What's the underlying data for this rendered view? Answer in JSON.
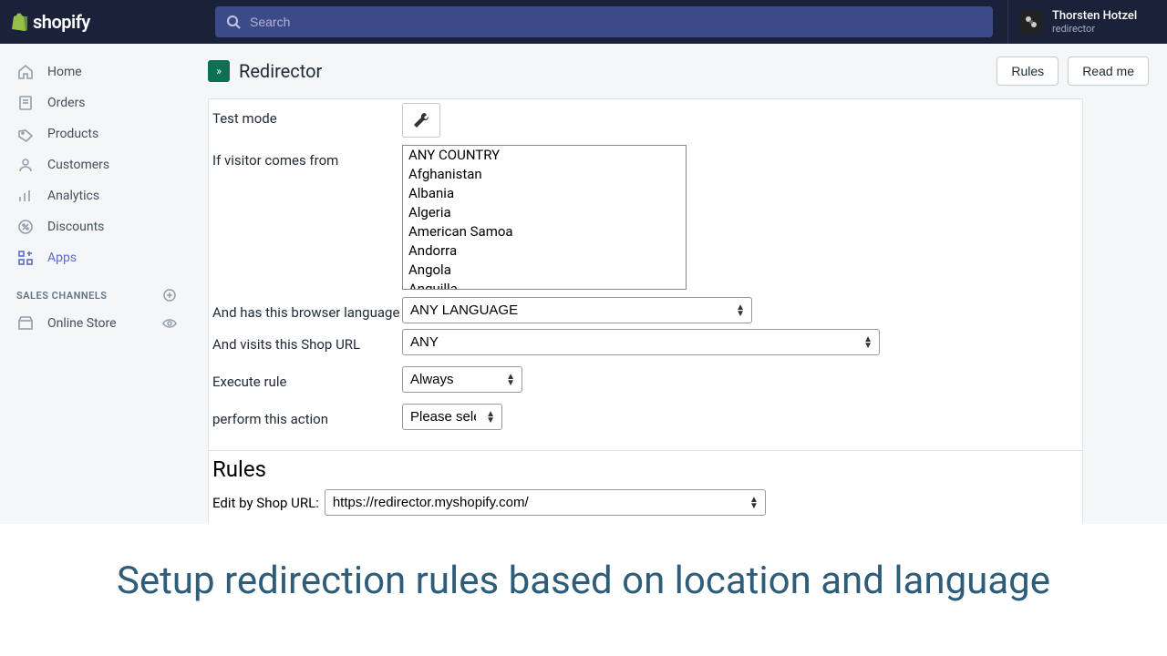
{
  "brand": "shopify",
  "search": {
    "placeholder": "Search"
  },
  "user": {
    "name": "Thorsten Hotzel",
    "sub": "redirector"
  },
  "sidebar": {
    "items": [
      {
        "label": "Home"
      },
      {
        "label": "Orders"
      },
      {
        "label": "Products"
      },
      {
        "label": "Customers"
      },
      {
        "label": "Analytics"
      },
      {
        "label": "Discounts"
      },
      {
        "label": "Apps"
      }
    ],
    "section_label": "SALES CHANNELS",
    "channels": [
      {
        "label": "Online Store"
      }
    ]
  },
  "page": {
    "title": "Redirector",
    "buttons": {
      "rules": "Rules",
      "readme": "Read me"
    }
  },
  "form": {
    "test_mode_label": "Test mode",
    "visitor_label": "If visitor comes from",
    "countries": [
      "ANY COUNTRY",
      "Afghanistan",
      "Albania",
      "Algeria",
      "American Samoa",
      "Andorra",
      "Angola",
      "Anguilla"
    ],
    "lang_label": "And has this browser language",
    "lang_value": "ANY LANGUAGE",
    "url_label": "And visits this Shop URL",
    "url_value": "ANY",
    "exec_label": "Execute rule",
    "exec_value": "Always",
    "action_label": "perform this action",
    "action_value": "Please select"
  },
  "rules": {
    "title": "Rules",
    "edit_label": "Edit by Shop URL:",
    "edit_value": "https://redirector.myshopify.com/"
  },
  "caption": "Setup redirection rules based on location and language",
  "colors": {
    "topbar": "#1a2138",
    "search_bg": "#3d4a8a",
    "sidebar_bg": "#f4f6f8",
    "accent": "#5c6ac4",
    "caption": "#2e5d7a"
  }
}
